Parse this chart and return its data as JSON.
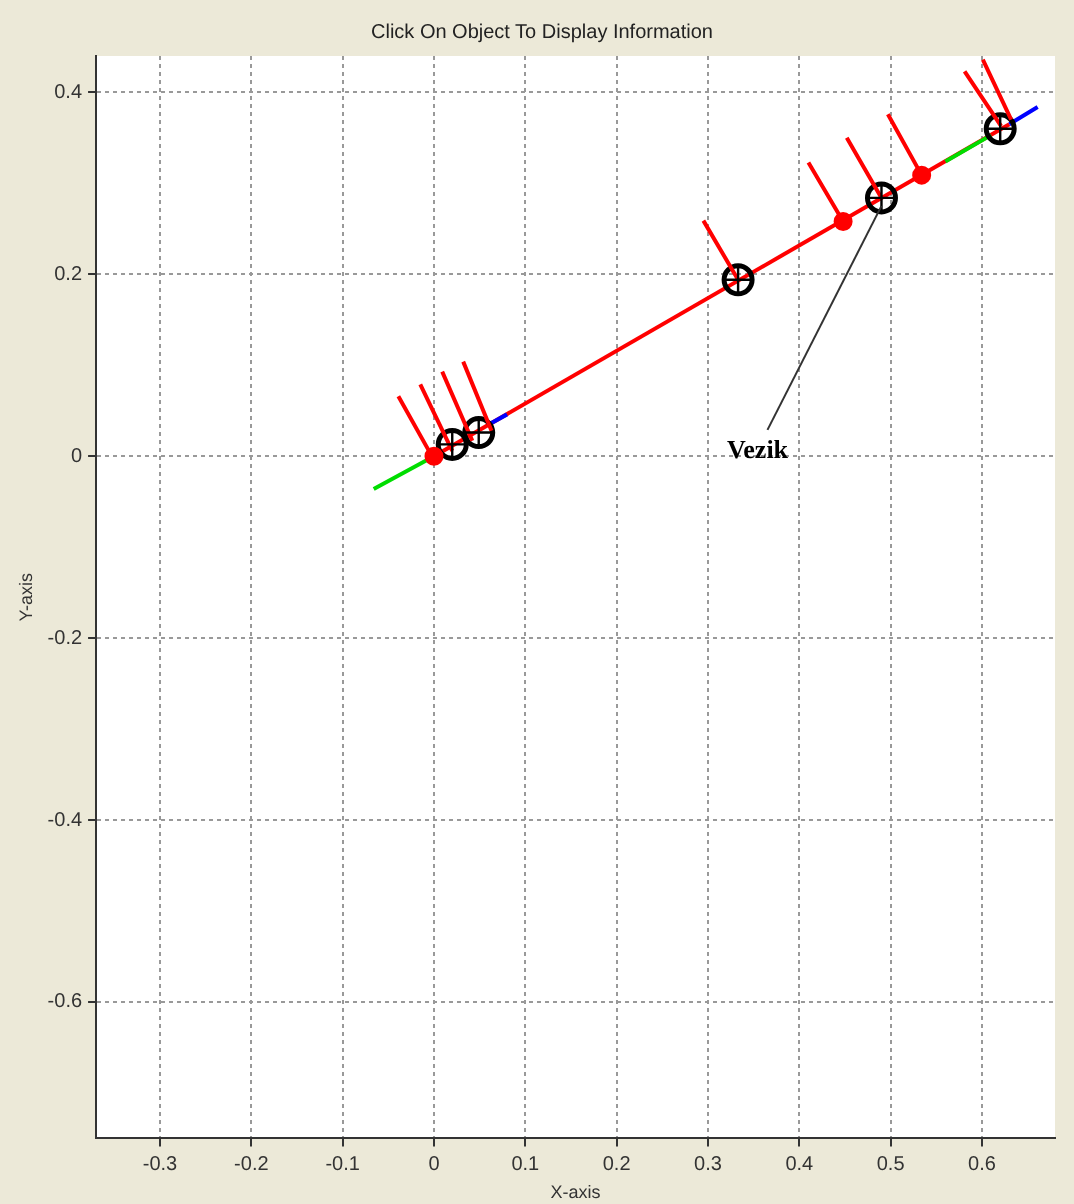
{
  "chart_data": {
    "type": "line",
    "title": "Click On Object To Display Information",
    "xlabel": "X-axis",
    "ylabel": "Y-axis",
    "xlim": [
      -0.37,
      0.68
    ],
    "ylim": [
      -0.75,
      0.44
    ],
    "xticks": [
      -0.3,
      -0.2,
      -0.1,
      0,
      0.1,
      0.2,
      0.3,
      0.4,
      0.5,
      0.6
    ],
    "yticks": [
      -0.6,
      -0.4,
      -0.2,
      0,
      0.2,
      0.4
    ],
    "grid": true,
    "legend": false,
    "line_style": "solid",
    "marker": "none",
    "annotations": [
      {
        "text": "Vezik",
        "x": 0.49,
        "y": 0.284
      }
    ],
    "series": [
      {
        "color": "#ff0000",
        "x": [
          0.0,
          0.63
        ],
        "values": [
          0.0,
          0.365
        ]
      },
      {
        "color": "#00dd00",
        "x": [
          -0.066,
          0.0,
          null,
          0.56,
          0.61
        ],
        "values": [
          -0.036,
          0.0,
          null,
          0.324,
          0.353
        ]
      },
      {
        "color": "#0000ff",
        "x": [
          0.06,
          0.08,
          null,
          0.63,
          0.661
        ],
        "values": [
          0.035,
          0.046,
          null,
          0.365,
          0.384
        ]
      },
      {
        "type": "scatter",
        "color": "#000000",
        "marker": "circle",
        "x": [
          0.02,
          0.049,
          0.333,
          0.49,
          0.62
        ],
        "values": [
          0.013,
          0.026,
          0.194,
          0.284,
          0.36
        ]
      },
      {
        "type": "scatter",
        "color": "#ff0000",
        "marker": "circle",
        "x": [
          0.0,
          0.448,
          0.534
        ],
        "values": [
          0.0,
          0.258,
          0.309
        ]
      },
      {
        "color": "#ff0000",
        "x": [
          0.0,
          -0.039,
          null,
          0.02,
          -0.015,
          null,
          0.042,
          0.009,
          null,
          0.063,
          0.032,
          null,
          0.333,
          0.295,
          null,
          0.448,
          0.41,
          null,
          0.49,
          0.452,
          null,
          0.534,
          0.497,
          null,
          0.621,
          0.581,
          null,
          0.632,
          0.601
        ],
        "values": [
          -0.004,
          0.066,
          null,
          0.006,
          0.079,
          null,
          0.017,
          0.093,
          null,
          0.028,
          0.104,
          null,
          0.194,
          0.259,
          null,
          0.258,
          0.323,
          null,
          0.284,
          0.35,
          null,
          0.309,
          0.376,
          null,
          0.363,
          0.423,
          null,
          0.37,
          0.436
        ]
      }
    ]
  }
}
